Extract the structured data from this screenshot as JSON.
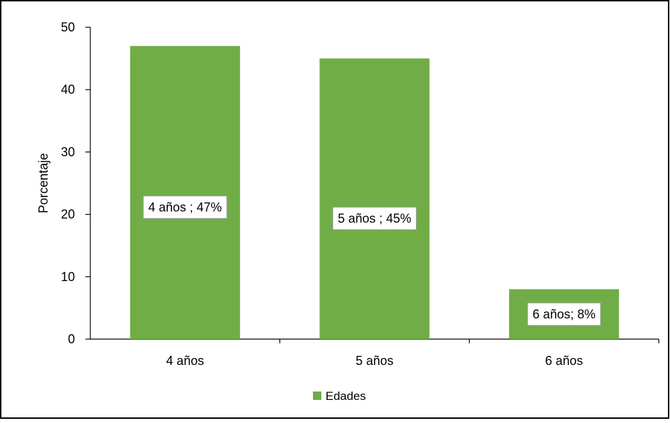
{
  "chart_data": {
    "type": "bar",
    "title": "",
    "xlabel": "",
    "ylabel": "Porcentaje",
    "categories": [
      "4 años",
      "5 años",
      "6 años"
    ],
    "series": [
      {
        "name": "Edades",
        "values": [
          47,
          45,
          8
        ],
        "data_labels": [
          "4 años ; 47%",
          "5 años ; 45%",
          "6 años; 8%"
        ]
      }
    ],
    "ylim": [
      0,
      50
    ],
    "yticks": [
      0,
      10,
      20,
      30,
      40,
      50
    ],
    "grid": false,
    "legend_position": "bottom",
    "colors": {
      "bar": "#70AD47",
      "axis": "#000000",
      "text": "#000000",
      "label_border": "#A6A6A6",
      "frame": "#000000"
    }
  }
}
